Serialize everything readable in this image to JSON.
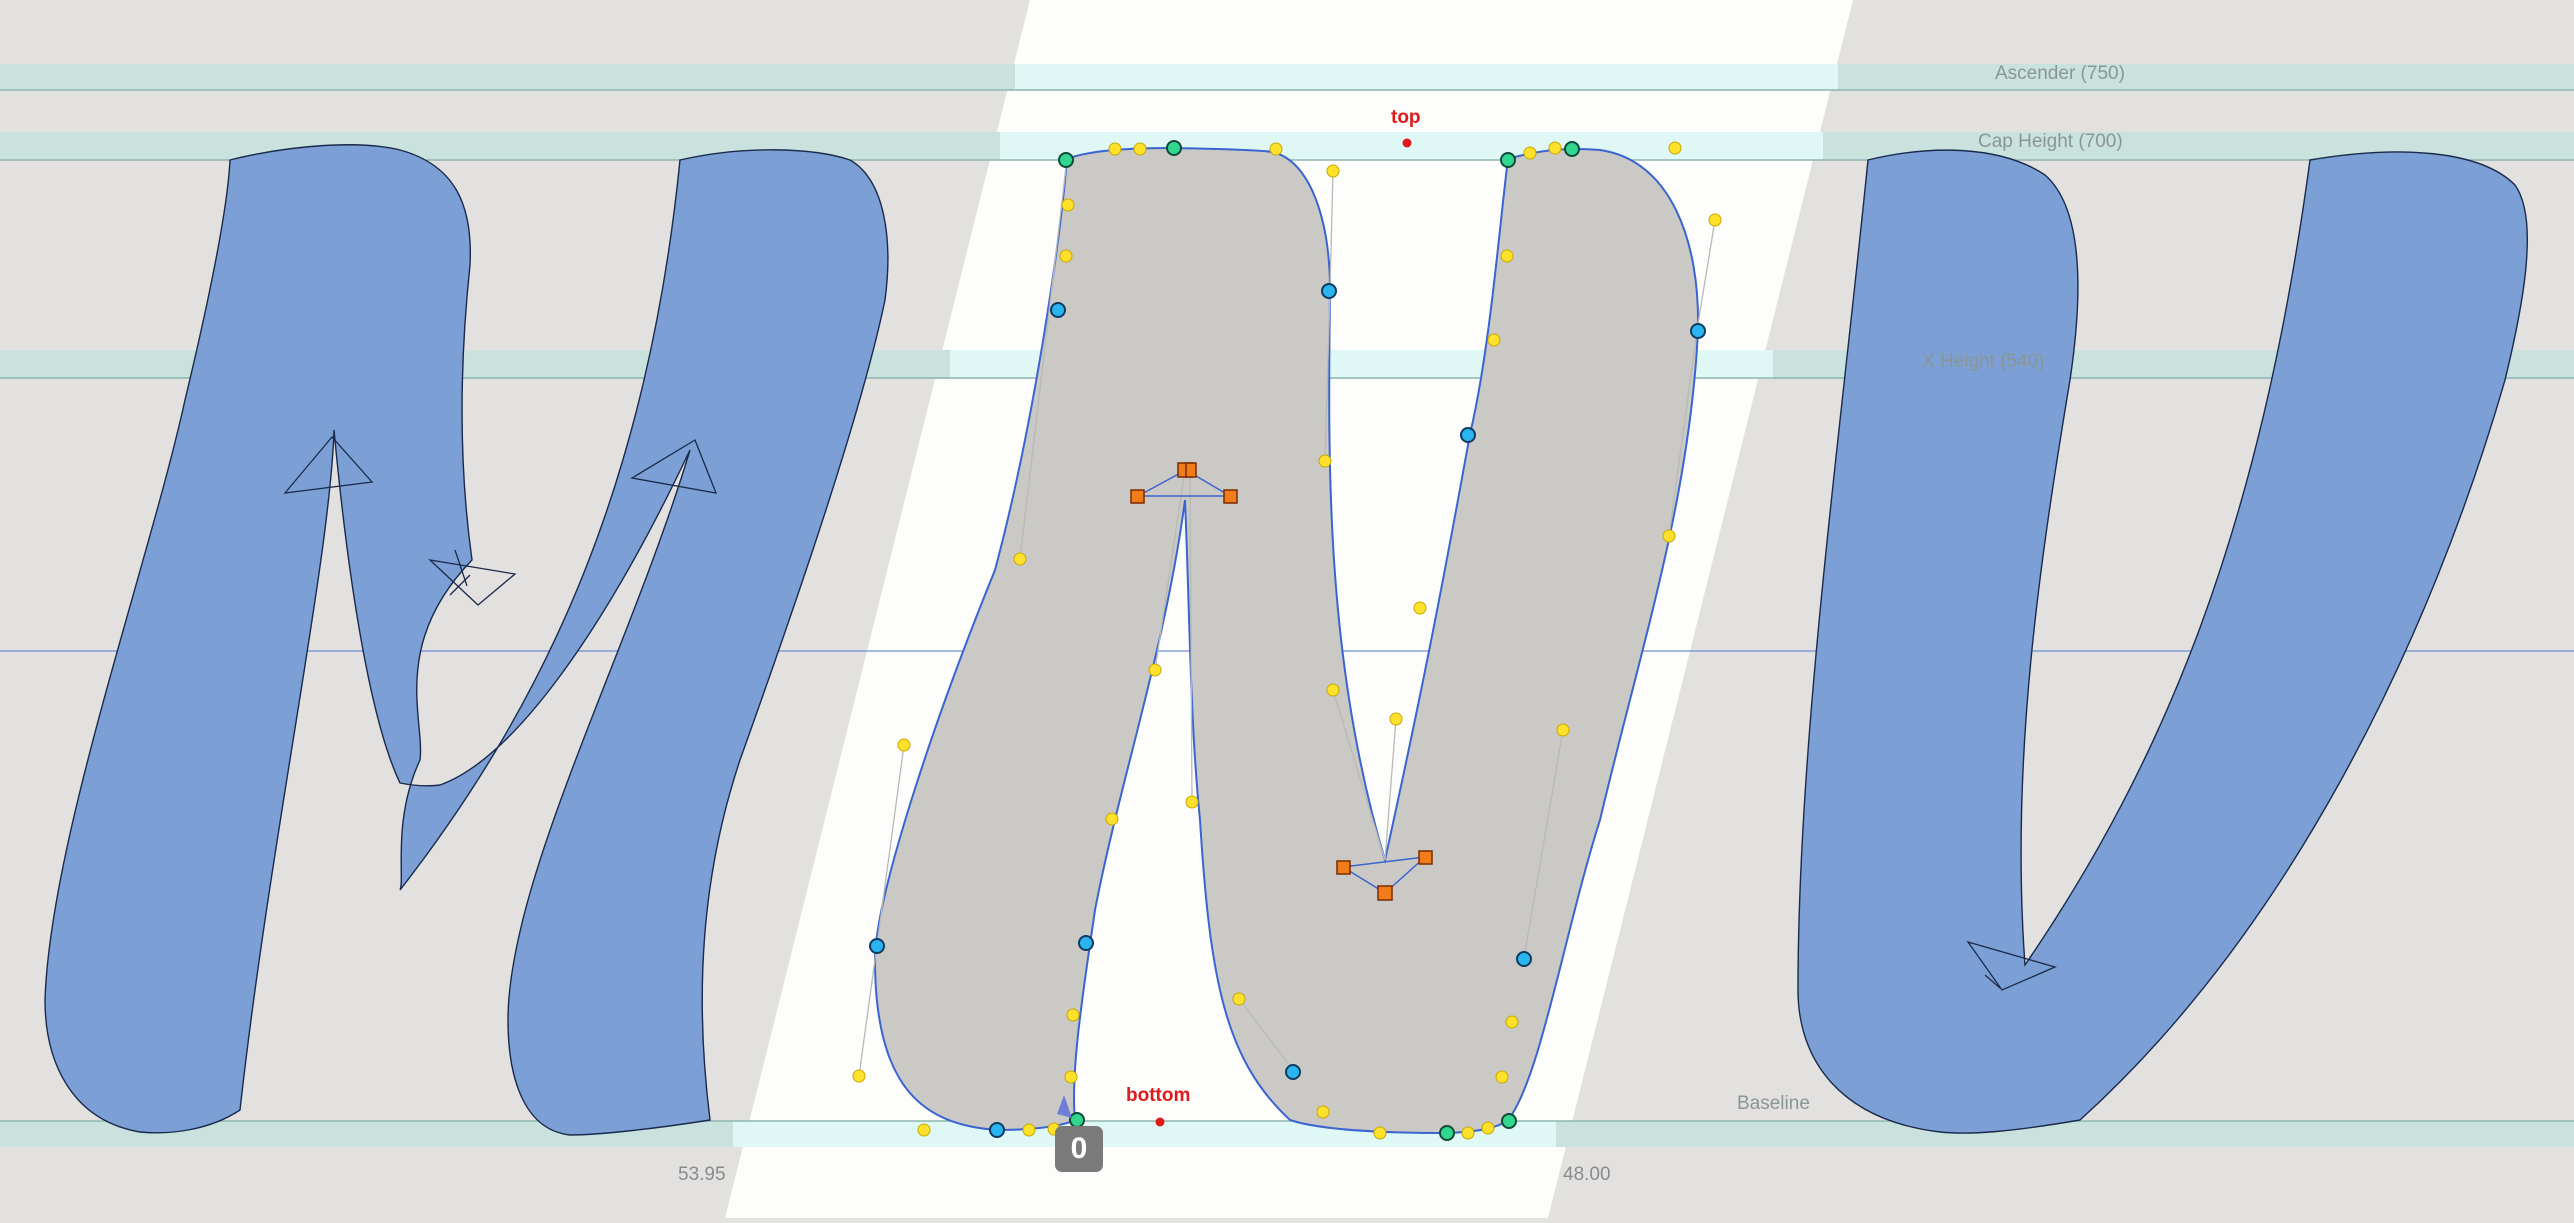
{
  "editor": {
    "glyphs": [
      "M",
      "N",
      "V"
    ],
    "active_glyph": "N"
  },
  "metrics": {
    "ascender": "Ascender (750)",
    "cap_height": "Cap Height (700)",
    "x_height": "X Height (540)",
    "baseline": "Baseline"
  },
  "anchors": {
    "top": "top",
    "bottom": "bottom"
  },
  "sidebearings": {
    "left": "53.95",
    "right": "48.00"
  },
  "selection_badge": "0",
  "colors": {
    "canvas": "#e2e1df",
    "active_background": "#fdfdfb",
    "inactive_glyph_fill": "#7c9fd6",
    "active_glyph_fill": "#cbc9c5",
    "metric_band": "#c9e2de",
    "oncurve_smooth": "#2ab5f0",
    "oncurve_corner": "#31d68f",
    "offcurve_handle": "#ffe12b",
    "anchor": "#e01a1a",
    "component_marker": "#f07c1a"
  }
}
